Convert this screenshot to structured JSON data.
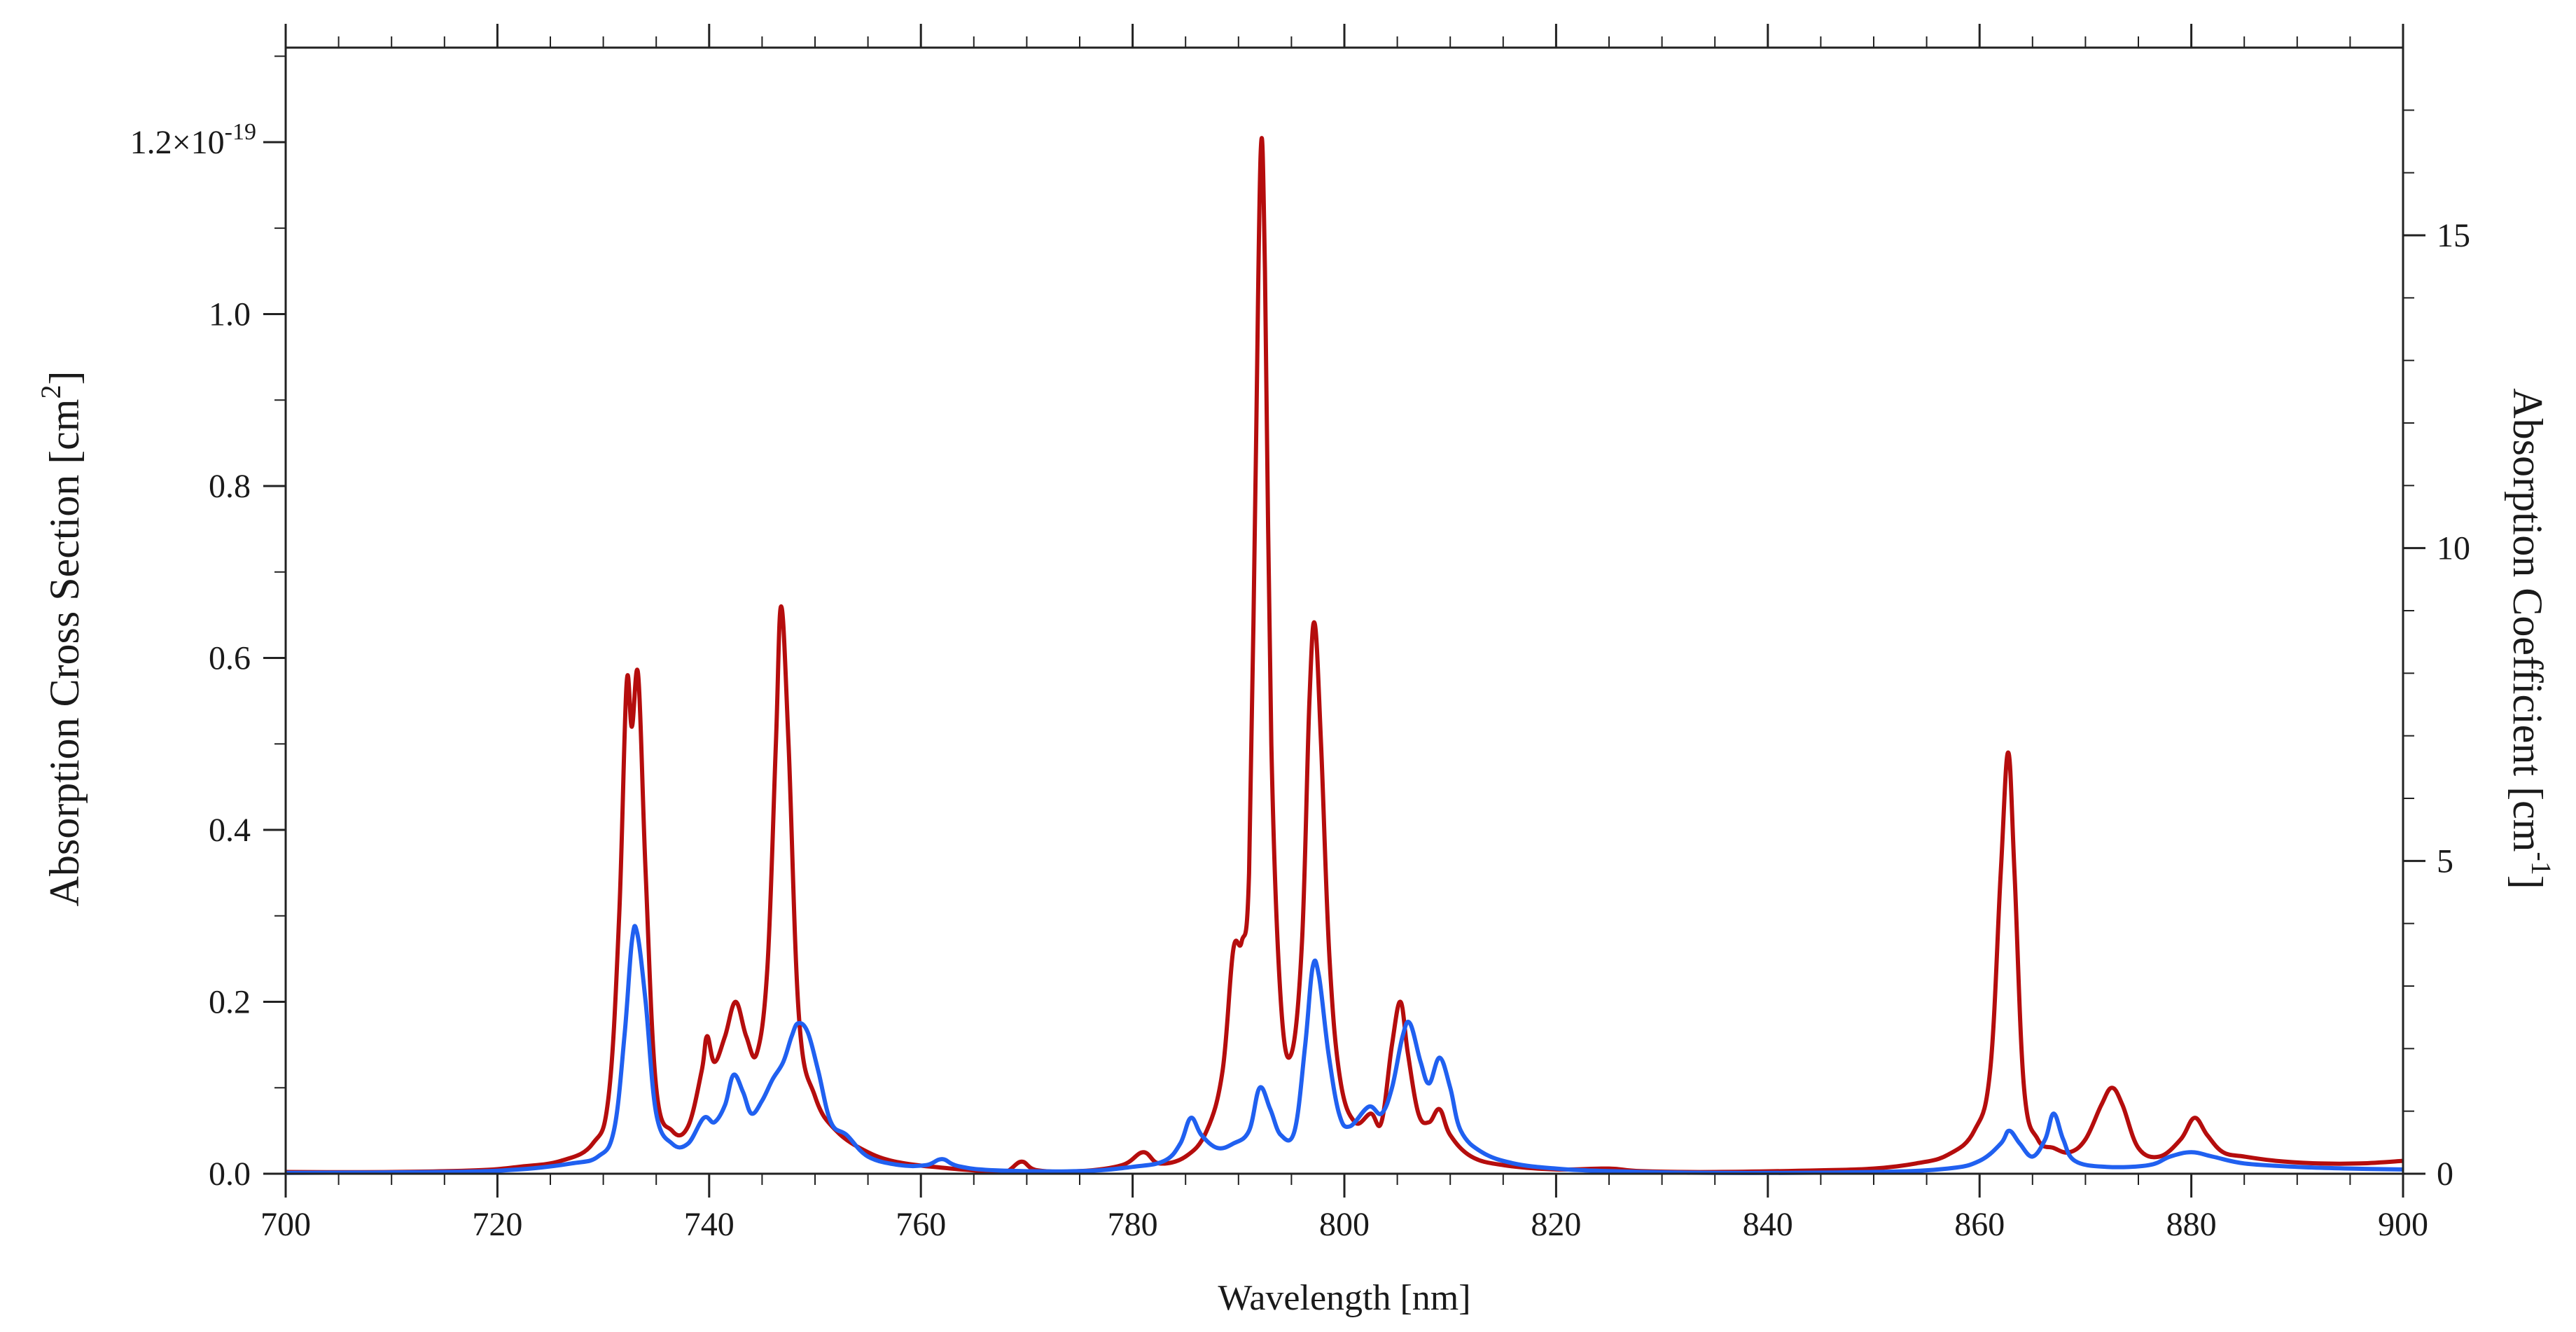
{
  "chart_data": {
    "type": "line",
    "xlabel": "Wavelength [nm]",
    "ylabel_left": "Absorption Cross Section [cm",
    "ylabel_left_sup": "2",
    "ylabel_left_end": "]",
    "ylabel_right": "Absorption Coefficient  [cm",
    "ylabel_right_sup": "-1",
    "ylabel_right_end": "]",
    "xlim": [
      700,
      900
    ],
    "ylim_left": [
      0,
      1.31e-19
    ],
    "ylim_right": [
      0,
      18.0
    ],
    "x_ticks": [
      "700",
      "720",
      "740",
      "760",
      "780",
      "800",
      "820",
      "840",
      "860",
      "880",
      "900"
    ],
    "y_left_ticks": [
      "0.0",
      "0.2",
      "0.4",
      "0.6",
      "0.8",
      "1.0"
    ],
    "y_left_ticks_values": [
      0,
      0.2,
      0.4,
      0.6,
      0.8,
      1.0
    ],
    "y_left_top_label": "1.2×10",
    "y_left_top_label_exp": "-19",
    "y_left_top_value": 1.2,
    "y_left_unit_multiplier": 1e-19,
    "y_right_ticks": [
      "0",
      "5",
      "10",
      "15"
    ],
    "y_right_ticks_values": [
      0,
      5,
      10,
      15
    ],
    "grid": false,
    "legend": "none",
    "series": [
      {
        "color": "#b50d0d",
        "axis": "left",
        "points": [
          [
            700,
            0.002
          ],
          [
            710,
            0.002
          ],
          [
            718,
            0.004
          ],
          [
            722,
            0.008
          ],
          [
            726,
            0.015
          ],
          [
            729,
            0.035
          ],
          [
            730.5,
            0.09
          ],
          [
            731.5,
            0.3
          ],
          [
            732.2,
            0.57
          ],
          [
            732.7,
            0.52
          ],
          [
            733.3,
            0.58
          ],
          [
            734,
            0.35
          ],
          [
            735,
            0.1
          ],
          [
            736.5,
            0.05
          ],
          [
            738,
            0.055
          ],
          [
            739.3,
            0.12
          ],
          [
            739.8,
            0.16
          ],
          [
            740.5,
            0.13
          ],
          [
            741.5,
            0.16
          ],
          [
            742.5,
            0.2
          ],
          [
            743.5,
            0.16
          ],
          [
            744.5,
            0.14
          ],
          [
            745.5,
            0.24
          ],
          [
            746.3,
            0.5
          ],
          [
            746.8,
            0.66
          ],
          [
            747.5,
            0.5
          ],
          [
            748.5,
            0.18
          ],
          [
            750,
            0.09
          ],
          [
            752,
            0.05
          ],
          [
            755,
            0.025
          ],
          [
            758,
            0.013
          ],
          [
            762,
            0.007
          ],
          [
            766,
            0.003
          ],
          [
            768,
            0.002
          ],
          [
            769.5,
            0.014
          ],
          [
            771,
            0.004
          ],
          [
            775,
            0.003
          ],
          [
            779,
            0.01
          ],
          [
            781,
            0.025
          ],
          [
            782.5,
            0.012
          ],
          [
            785,
            0.02
          ],
          [
            787,
            0.05
          ],
          [
            788.5,
            0.12
          ],
          [
            789.5,
            0.26
          ],
          [
            790.3,
            0.27
          ],
          [
            791,
            0.35
          ],
          [
            791.6,
            0.8
          ],
          [
            792.1,
            1.19
          ],
          [
            792.5,
            1.05
          ],
          [
            793.1,
            0.5
          ],
          [
            794,
            0.2
          ],
          [
            795,
            0.14
          ],
          [
            796,
            0.27
          ],
          [
            796.7,
            0.55
          ],
          [
            797.2,
            0.64
          ],
          [
            797.8,
            0.5
          ],
          [
            798.6,
            0.25
          ],
          [
            799.6,
            0.11
          ],
          [
            801,
            0.06
          ],
          [
            802.5,
            0.07
          ],
          [
            803.5,
            0.06
          ],
          [
            804.5,
            0.15
          ],
          [
            805.3,
            0.2
          ],
          [
            806,
            0.14
          ],
          [
            807,
            0.07
          ],
          [
            808,
            0.06
          ],
          [
            809,
            0.075
          ],
          [
            810,
            0.045
          ],
          [
            812,
            0.02
          ],
          [
            815,
            0.01
          ],
          [
            820,
            0.005
          ],
          [
            825,
            0.006
          ],
          [
            828,
            0.003
          ],
          [
            835,
            0.002
          ],
          [
            845,
            0.004
          ],
          [
            850,
            0.006
          ],
          [
            854,
            0.012
          ],
          [
            857,
            0.022
          ],
          [
            859.5,
            0.05
          ],
          [
            861,
            0.12
          ],
          [
            862,
            0.35
          ],
          [
            862.7,
            0.49
          ],
          [
            863.3,
            0.35
          ],
          [
            864.2,
            0.1
          ],
          [
            865.5,
            0.04
          ],
          [
            867,
            0.03
          ],
          [
            868.5,
            0.025
          ],
          [
            870,
            0.04
          ],
          [
            871.5,
            0.08
          ],
          [
            872.5,
            0.1
          ],
          [
            873.5,
            0.08
          ],
          [
            875,
            0.03
          ],
          [
            877,
            0.02
          ],
          [
            879,
            0.04
          ],
          [
            880.3,
            0.065
          ],
          [
            881.5,
            0.045
          ],
          [
            883,
            0.025
          ],
          [
            885,
            0.02
          ],
          [
            888,
            0.015
          ],
          [
            892,
            0.012
          ],
          [
            896,
            0.012
          ],
          [
            900,
            0.015
          ]
        ]
      },
      {
        "color": "#2060f0",
        "axis": "left",
        "points": [
          [
            700,
            0.001
          ],
          [
            715,
            0.002
          ],
          [
            722,
            0.005
          ],
          [
            727,
            0.012
          ],
          [
            729.5,
            0.02
          ],
          [
            731,
            0.05
          ],
          [
            732,
            0.16
          ],
          [
            732.7,
            0.27
          ],
          [
            733.2,
            0.28
          ],
          [
            734,
            0.2
          ],
          [
            735,
            0.07
          ],
          [
            736.5,
            0.035
          ],
          [
            738,
            0.035
          ],
          [
            739.5,
            0.065
          ],
          [
            740.5,
            0.06
          ],
          [
            741.5,
            0.08
          ],
          [
            742.3,
            0.115
          ],
          [
            743.2,
            0.095
          ],
          [
            744,
            0.07
          ],
          [
            745,
            0.085
          ],
          [
            746,
            0.11
          ],
          [
            747,
            0.13
          ],
          [
            747.8,
            0.16
          ],
          [
            748.4,
            0.175
          ],
          [
            749.3,
            0.165
          ],
          [
            750.3,
            0.12
          ],
          [
            751.5,
            0.06
          ],
          [
            753,
            0.045
          ],
          [
            755,
            0.02
          ],
          [
            758,
            0.01
          ],
          [
            760.5,
            0.01
          ],
          [
            762,
            0.017
          ],
          [
            763.5,
            0.009
          ],
          [
            767,
            0.004
          ],
          [
            775,
            0.003
          ],
          [
            780,
            0.008
          ],
          [
            783,
            0.015
          ],
          [
            784.5,
            0.035
          ],
          [
            785.5,
            0.065
          ],
          [
            786.5,
            0.045
          ],
          [
            788,
            0.03
          ],
          [
            789.5,
            0.035
          ],
          [
            791,
            0.05
          ],
          [
            792,
            0.1
          ],
          [
            793,
            0.075
          ],
          [
            794,
            0.045
          ],
          [
            795.3,
            0.05
          ],
          [
            796.3,
            0.15
          ],
          [
            797,
            0.24
          ],
          [
            797.6,
            0.23
          ],
          [
            798.5,
            0.14
          ],
          [
            799.5,
            0.07
          ],
          [
            800.5,
            0.055
          ],
          [
            802.3,
            0.078
          ],
          [
            803.5,
            0.07
          ],
          [
            804.5,
            0.1
          ],
          [
            805.5,
            0.16
          ],
          [
            806.2,
            0.175
          ],
          [
            807.2,
            0.13
          ],
          [
            808,
            0.105
          ],
          [
            809,
            0.135
          ],
          [
            810,
            0.1
          ],
          [
            811,
            0.05
          ],
          [
            813,
            0.025
          ],
          [
            816,
            0.012
          ],
          [
            820,
            0.006
          ],
          [
            825,
            0.003
          ],
          [
            835,
            0.001
          ],
          [
            850,
            0.002
          ],
          [
            857,
            0.006
          ],
          [
            860,
            0.015
          ],
          [
            862,
            0.035
          ],
          [
            862.8,
            0.05
          ],
          [
            863.8,
            0.035
          ],
          [
            865,
            0.02
          ],
          [
            866.2,
            0.04
          ],
          [
            867,
            0.07
          ],
          [
            867.9,
            0.04
          ],
          [
            869,
            0.015
          ],
          [
            872,
            0.008
          ],
          [
            876,
            0.01
          ],
          [
            878,
            0.02
          ],
          [
            880,
            0.025
          ],
          [
            882,
            0.02
          ],
          [
            885,
            0.012
          ],
          [
            890,
            0.008
          ],
          [
            895,
            0.006
          ],
          [
            900,
            0.005
          ]
        ]
      }
    ]
  }
}
